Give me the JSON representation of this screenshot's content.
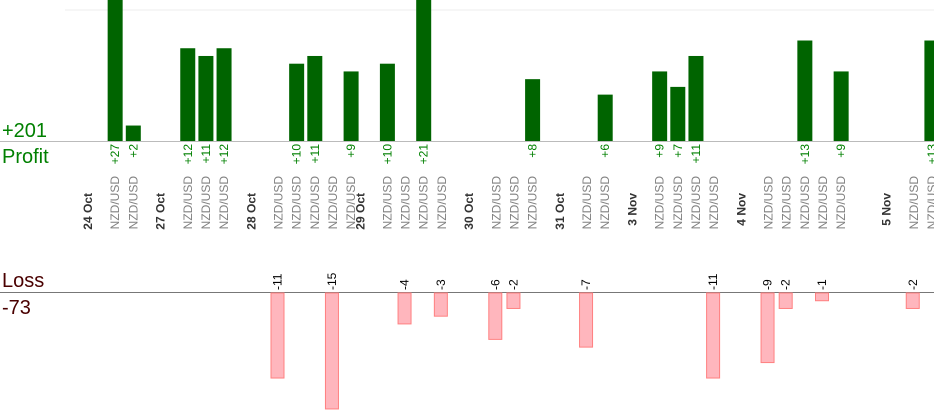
{
  "chart_data": {
    "type": "bar",
    "profit": {
      "total_label": "+201",
      "label": "Profit",
      "color": "#006400",
      "label_color": "#008000"
    },
    "loss": {
      "total_label": "-73",
      "label": "Loss",
      "color": "#ffb6bd",
      "border_color": "#ff8080",
      "text_color": "#4a0000"
    },
    "symbol_color": "#808080",
    "dates": [
      "24 Oct",
      "27 Oct",
      "28 Oct",
      "29 Oct",
      "30 Oct",
      "31 Oct",
      "3 Nov",
      "4 Nov",
      "5 Nov"
    ],
    "trades": [
      {
        "symbol": "NZD/USD",
        "value": 27
      },
      {
        "symbol": "NZD/USD",
        "value": 2
      },
      {
        "symbol": "NZD/USD",
        "value": 12
      },
      {
        "symbol": "NZD/USD",
        "value": 11
      },
      {
        "symbol": "NZD/USD",
        "value": 12
      },
      {
        "symbol": "NZD/USD",
        "value": -11
      },
      {
        "symbol": "NZD/USD",
        "value": 10
      },
      {
        "symbol": "NZD/USD",
        "value": 11
      },
      {
        "symbol": "NZD/USD",
        "value": -15
      },
      {
        "symbol": "NZD/USD",
        "value": 9
      },
      {
        "symbol": "NZD/USD",
        "value": 10
      },
      {
        "symbol": "NZD/USD",
        "value": -4
      },
      {
        "symbol": "NZD/USD",
        "value": 21
      },
      {
        "symbol": "NZD/USD",
        "value": -3
      },
      {
        "symbol": "NZD/USD",
        "value": -6
      },
      {
        "symbol": "NZD/USD",
        "value": -2
      },
      {
        "symbol": "NZD/USD",
        "value": 8
      },
      {
        "symbol": "NZD/USD",
        "value": -7
      },
      {
        "symbol": "NZD/USD",
        "value": 6
      },
      {
        "symbol": "NZD/USD",
        "value": 9
      },
      {
        "symbol": "NZD/USD",
        "value": 7
      },
      {
        "symbol": "NZD/USD",
        "value": 11
      },
      {
        "symbol": "NZD/USD",
        "value": -11
      },
      {
        "symbol": "NZD/USD",
        "value": -9
      },
      {
        "symbol": "NZD/USD",
        "value": -2
      },
      {
        "symbol": "NZD/USD",
        "value": 13
      },
      {
        "symbol": "NZD/USD",
        "value": -1
      },
      {
        "symbol": "NZD/USD",
        "value": 9
      },
      {
        "symbol": "NZD/USD",
        "value": -2
      },
      {
        "symbol": "NZD/USD",
        "value": 13
      }
    ]
  }
}
